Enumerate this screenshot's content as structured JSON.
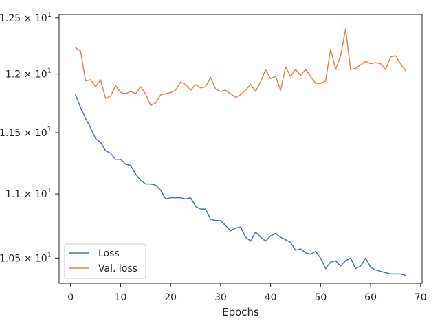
{
  "chart_data": {
    "type": "line",
    "title": "",
    "xlabel": "Epochs",
    "ylabel": "",
    "xlim": [
      -2.3,
      70.3
    ],
    "ylim": [
      10.31,
      12.53
    ],
    "y_scale": "log",
    "grid": false,
    "legend_position": "bottom-left",
    "x_ticks": [
      0,
      10,
      20,
      30,
      40,
      50,
      60,
      70
    ],
    "x_tick_labels": [
      "0",
      "10",
      "20",
      "30",
      "40",
      "50",
      "60",
      "70"
    ],
    "y_ticks": [
      10.5,
      11.0,
      11.5,
      12.0,
      12.5
    ],
    "y_tick_labels": [
      {
        "mantissa": "1.05",
        "exponent": "1"
      },
      {
        "mantissa": "1.1",
        "exponent": "1"
      },
      {
        "mantissa": "1.15",
        "exponent": "1"
      },
      {
        "mantissa": "1.2",
        "exponent": "1"
      },
      {
        "mantissa": "1.25",
        "exponent": "1"
      }
    ],
    "x": [
      1,
      2,
      3,
      4,
      5,
      6,
      7,
      8,
      9,
      10,
      11,
      12,
      13,
      14,
      15,
      16,
      17,
      18,
      19,
      20,
      21,
      22,
      23,
      24,
      25,
      26,
      27,
      28,
      29,
      30,
      31,
      32,
      33,
      34,
      35,
      36,
      37,
      38,
      39,
      40,
      41,
      42,
      43,
      44,
      45,
      46,
      47,
      48,
      49,
      50,
      51,
      52,
      53,
      54,
      55,
      56,
      57,
      58,
      59,
      60,
      61,
      62,
      63,
      64,
      65,
      66,
      67
    ],
    "series": [
      {
        "name": "Loss",
        "color": "#4c72b0",
        "values": [
          11.82,
          11.71,
          11.62,
          11.54,
          11.45,
          11.42,
          11.35,
          11.33,
          11.28,
          11.28,
          11.24,
          11.23,
          11.16,
          11.11,
          11.08,
          11.08,
          11.07,
          11.03,
          10.96,
          10.97,
          10.97,
          10.97,
          10.96,
          10.97,
          10.9,
          10.88,
          10.88,
          10.8,
          10.79,
          10.79,
          10.75,
          10.71,
          10.73,
          10.74,
          10.66,
          10.63,
          10.7,
          10.66,
          10.63,
          10.67,
          10.69,
          10.66,
          10.64,
          10.62,
          10.56,
          10.57,
          10.54,
          10.53,
          10.55,
          10.5,
          10.42,
          10.47,
          10.48,
          10.44,
          10.48,
          10.5,
          10.42,
          10.44,
          10.5,
          10.43,
          10.41,
          10.4,
          10.39,
          10.38,
          10.38,
          10.38,
          10.37
        ]
      },
      {
        "name": "Val. loss",
        "color": "#dd8452",
        "values": [
          12.23,
          12.2,
          11.94,
          11.95,
          11.89,
          11.95,
          11.79,
          11.81,
          11.9,
          11.84,
          11.83,
          11.85,
          11.83,
          11.89,
          11.83,
          11.73,
          11.75,
          11.82,
          11.83,
          11.84,
          11.86,
          11.93,
          11.91,
          11.86,
          11.91,
          11.88,
          11.89,
          11.97,
          11.87,
          11.85,
          11.86,
          11.83,
          11.8,
          11.82,
          11.86,
          11.91,
          11.85,
          11.93,
          12.04,
          11.96,
          11.98,
          11.86,
          12.06,
          11.98,
          12.04,
          11.99,
          12.04,
          11.98,
          11.92,
          11.92,
          11.94,
          12.22,
          12.04,
          12.16,
          12.4,
          12.04,
          12.05,
          12.08,
          12.11,
          12.09,
          12.1,
          12.09,
          12.04,
          12.15,
          12.16,
          12.09,
          12.03
        ]
      }
    ]
  }
}
